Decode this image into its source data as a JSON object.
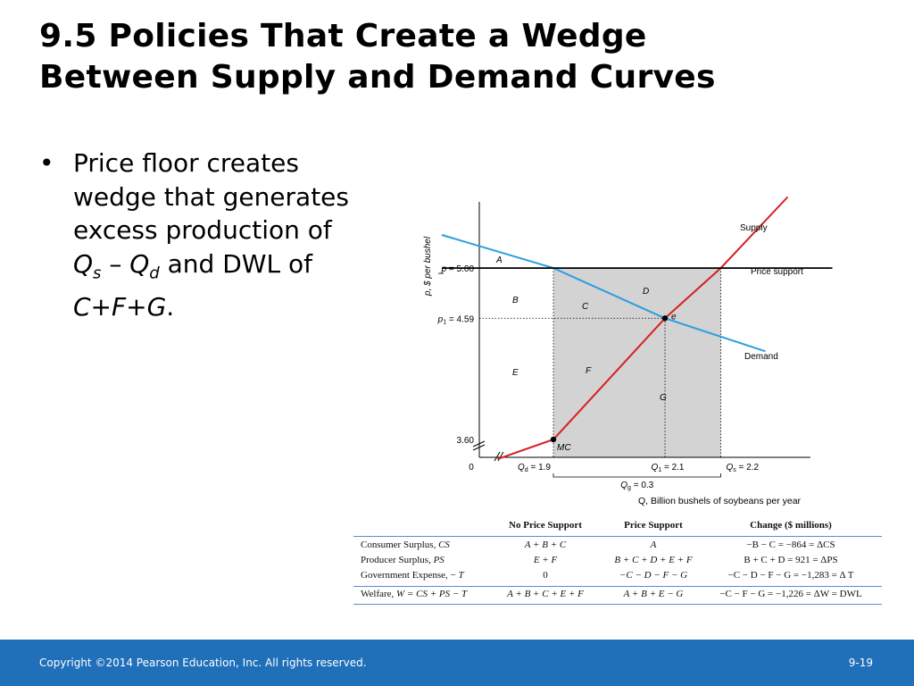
{
  "slide": {
    "title_line1": "9.5  Policies That Create a Wedge",
    "title_line2": "Between Supply and Demand Curves",
    "bullet_char": "•",
    "bullet_parts": {
      "p1": "Price floor creates wedge that generates excess production of ",
      "qs_main": "Q",
      "qs_sub": "s",
      "p2": " – ",
      "qd_main": "Q",
      "qd_sub": "d",
      "p3": " and DWL of ",
      "dwl": "C+F+G",
      "p4": "."
    },
    "footer": {
      "copyright": "Copyright ©2014 Pearson Education, Inc. All rights reserved.",
      "page": "9-19"
    }
  },
  "colors": {
    "footer_bg": "#1f6fb9",
    "supply": "#d62020",
    "demand": "#2a9ee0",
    "price_support": "#000000",
    "shaded": "#d3d3d3",
    "table_rule": "#5b8fd0"
  },
  "chart_data": {
    "type": "line",
    "y_axis_label": "p, $ per bushel",
    "x_axis_label": "Q, Billion bushels of soybeans per year",
    "origin_label": "0",
    "y_ticks": [
      {
        "value": 3.6,
        "label": "3.60"
      },
      {
        "value": 4.59,
        "label_main": "p",
        "label_sub": "1",
        "label_rest": " = 4.59"
      },
      {
        "value": 5.0,
        "label_main": "p",
        "label_rest": " = 5.00"
      }
    ],
    "x_ticks": [
      {
        "value": 1.9,
        "label_main": "Q",
        "label_sub": "d",
        "label_rest": " = 1.9"
      },
      {
        "value": 2.1,
        "label_main": "Q",
        "label_sub": "1",
        "label_rest": " = 2.1"
      },
      {
        "value": 2.2,
        "label_main": "Q",
        "label_sub": "s",
        "label_rest": " = 2.2"
      }
    ],
    "qg_label": {
      "main": "Q",
      "sub": "g",
      "rest": " = 0.3"
    },
    "series": [
      {
        "name": "Supply",
        "color": "#d62020",
        "points": [
          [
            1.8,
            3.44
          ],
          [
            1.9,
            3.6
          ],
          [
            2.1,
            4.59
          ],
          [
            2.2,
            5.0
          ],
          [
            2.32,
            5.58
          ]
        ]
      },
      {
        "name": "Demand",
        "color": "#2a9ee0",
        "points": [
          [
            1.7,
            5.27
          ],
          [
            1.9,
            5.0
          ],
          [
            2.1,
            4.59
          ],
          [
            2.28,
            4.32
          ]
        ]
      },
      {
        "name": "Price support",
        "color": "#000000",
        "points": [
          [
            1.7,
            5.0
          ],
          [
            2.4,
            5.0
          ]
        ]
      }
    ],
    "area_labels": [
      "A",
      "B",
      "C",
      "D",
      "E",
      "F",
      "G"
    ],
    "point_labels": {
      "equilibrium": "e",
      "mc": "MC"
    },
    "shaded_region": {
      "x_from": 1.9,
      "x_to": 2.2,
      "y_top": 5.0,
      "y_bottom": 3.6
    }
  },
  "table": {
    "headers": [
      "",
      "No Price Support",
      "Price Support",
      "Change ($ millions)"
    ],
    "rows": [
      {
        "label": "Consumer Surplus, ",
        "abbr": "CS",
        "c1": "A + B + C",
        "c2": "A",
        "c3": "−B − C = −864 = ΔCS"
      },
      {
        "label": "Producer Surplus, ",
        "abbr": "PS",
        "c1": "E + F",
        "c2": "B + C + D + E + F",
        "c3": "B + C + D = 921 = ΔPS"
      },
      {
        "label": "Government Expense, − ",
        "abbr": "T",
        "c1": "0",
        "c2": "−C − D − F − G",
        "c3": "−C − D − F − G = −1,283 = Δ T"
      },
      {
        "label": "Welfare, ",
        "abbr": "W = CS + PS − T",
        "c1": "A + B + C + E + F",
        "c2": "A + B + E − G",
        "c3": "−C − F − G = −1,226 = ΔW = DWL"
      }
    ]
  }
}
